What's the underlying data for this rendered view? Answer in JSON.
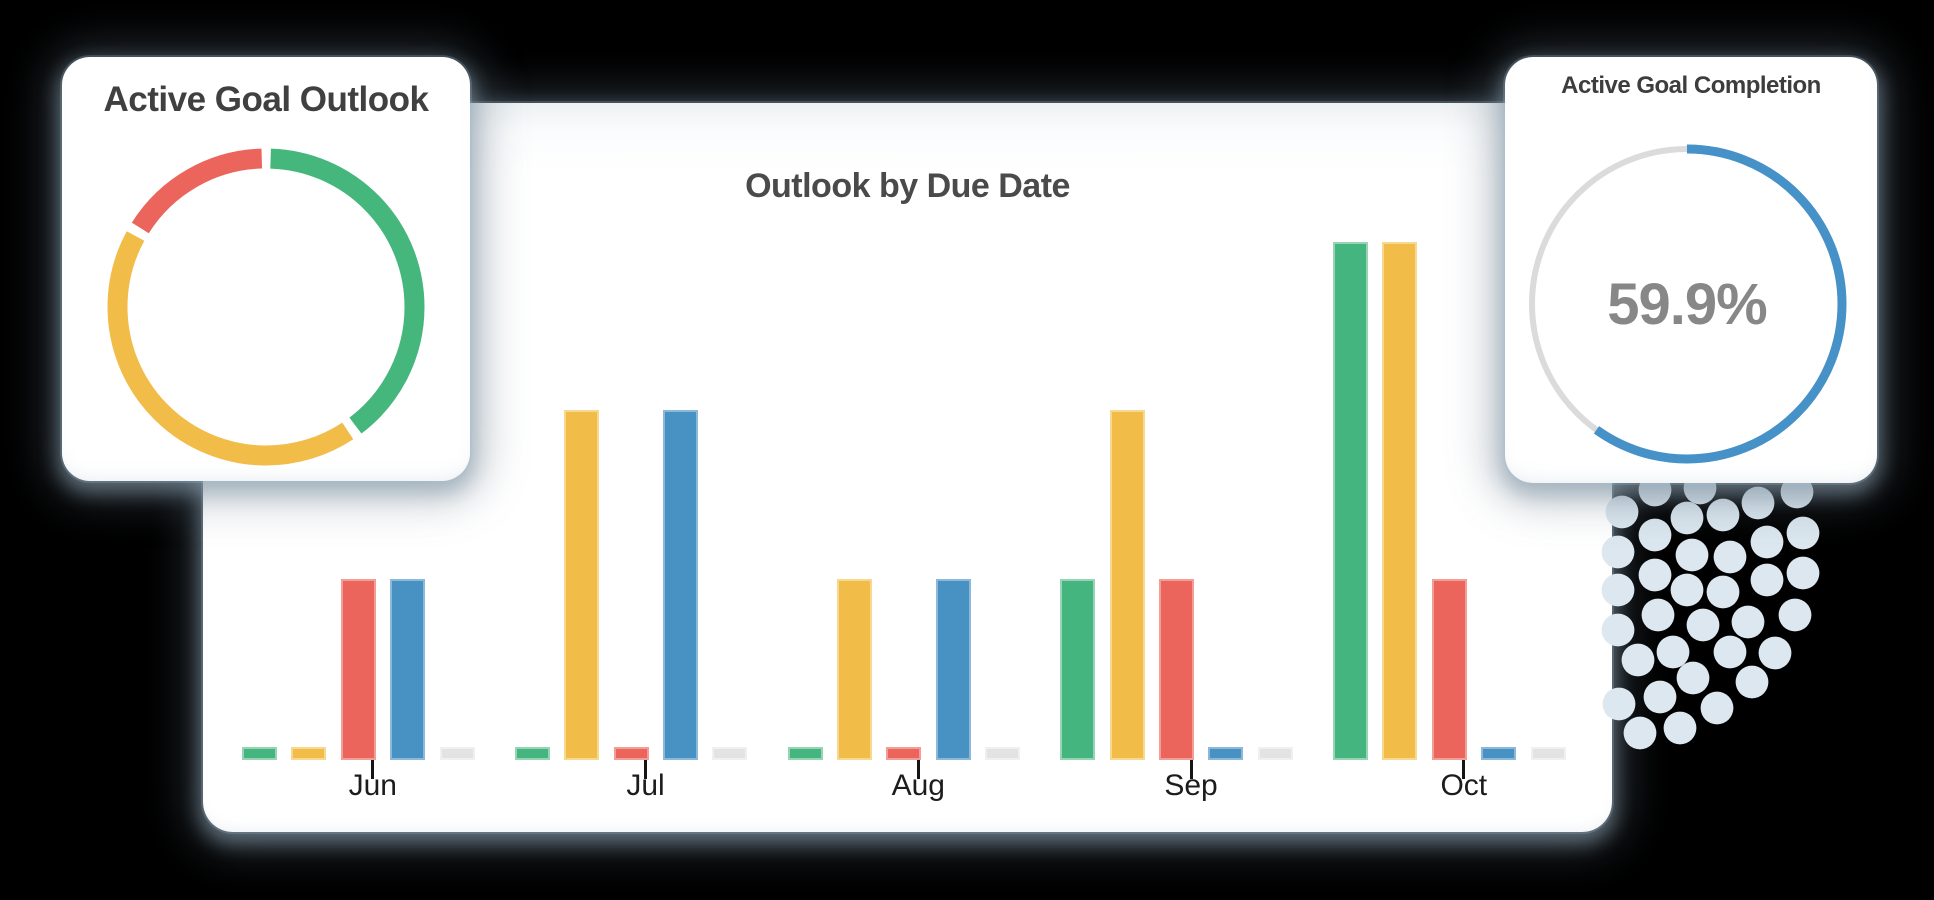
{
  "left_card": {
    "title": "Active Goal Outlook"
  },
  "right_card": {
    "title": "Active Goal Completion",
    "percent_label": "59.9%"
  },
  "main_card": {
    "title": "Outlook by Due Date"
  },
  "colors": {
    "page_bg": "#000000",
    "card_bg": "#ffffff",
    "title_text": "#404040",
    "month_text": "#1c1c1c",
    "percent_text": "#878787",
    "dots": "#dce7ef",
    "green": "#44b57e",
    "yellow": "#f2bc49",
    "red": "#ec655c",
    "blue": "#4792c3",
    "gray": "#e3e3e3",
    "ring_blue": "#4691c8",
    "ring_track": "#dbdbdb"
  },
  "chart_data": [
    {
      "type": "pie",
      "subtype": "donut",
      "title": "Active Goal Outlook",
      "legend": false,
      "start": "top",
      "direction": "clockwise",
      "segments": [
        {
          "label": "green",
          "value_pct": 40.2,
          "color": "#45b77c"
        },
        {
          "label": "yellow",
          "value_pct": 43.2,
          "color": "#f2bc49"
        },
        {
          "label": "red",
          "value_pct": 16.6,
          "color": "#ec655c"
        }
      ]
    },
    {
      "type": "bar",
      "title": "Outlook by Due Date",
      "categories": [
        "Jun",
        "Jul",
        "Aug",
        "Sep",
        "Oct"
      ],
      "series": [
        {
          "name": "green",
          "color": "#44b57e",
          "border_color": "#96d4b4",
          "values": [
            1,
            1,
            1,
            14,
            40
          ]
        },
        {
          "name": "yellow",
          "color": "#f2bc49",
          "border_color": "#f7d88f",
          "values": [
            1,
            27,
            14,
            27,
            40
          ]
        },
        {
          "name": "red",
          "color": "#ec655c",
          "border_color": "#f29e97",
          "values": [
            14,
            1,
            1,
            14,
            14
          ]
        },
        {
          "name": "blue",
          "color": "#4792c3",
          "border_color": "#8cb9d9",
          "values": [
            14,
            27,
            14,
            1,
            1
          ]
        },
        {
          "name": "gray",
          "color": "#e3e3e3",
          "border_color": "#f0f0f0",
          "values": [
            1,
            1,
            1,
            1,
            1
          ]
        }
      ],
      "units": "relative (no y-axis labels shown)",
      "ylim": [
        0,
        42
      ],
      "grid": false,
      "legend": false
    },
    {
      "type": "pie",
      "subtype": "progress-ring",
      "title": "Active Goal Completion",
      "percent": 59.9,
      "label": "59.9%",
      "color": "#4691c8",
      "track_color": "#dbdbdb"
    }
  ]
}
